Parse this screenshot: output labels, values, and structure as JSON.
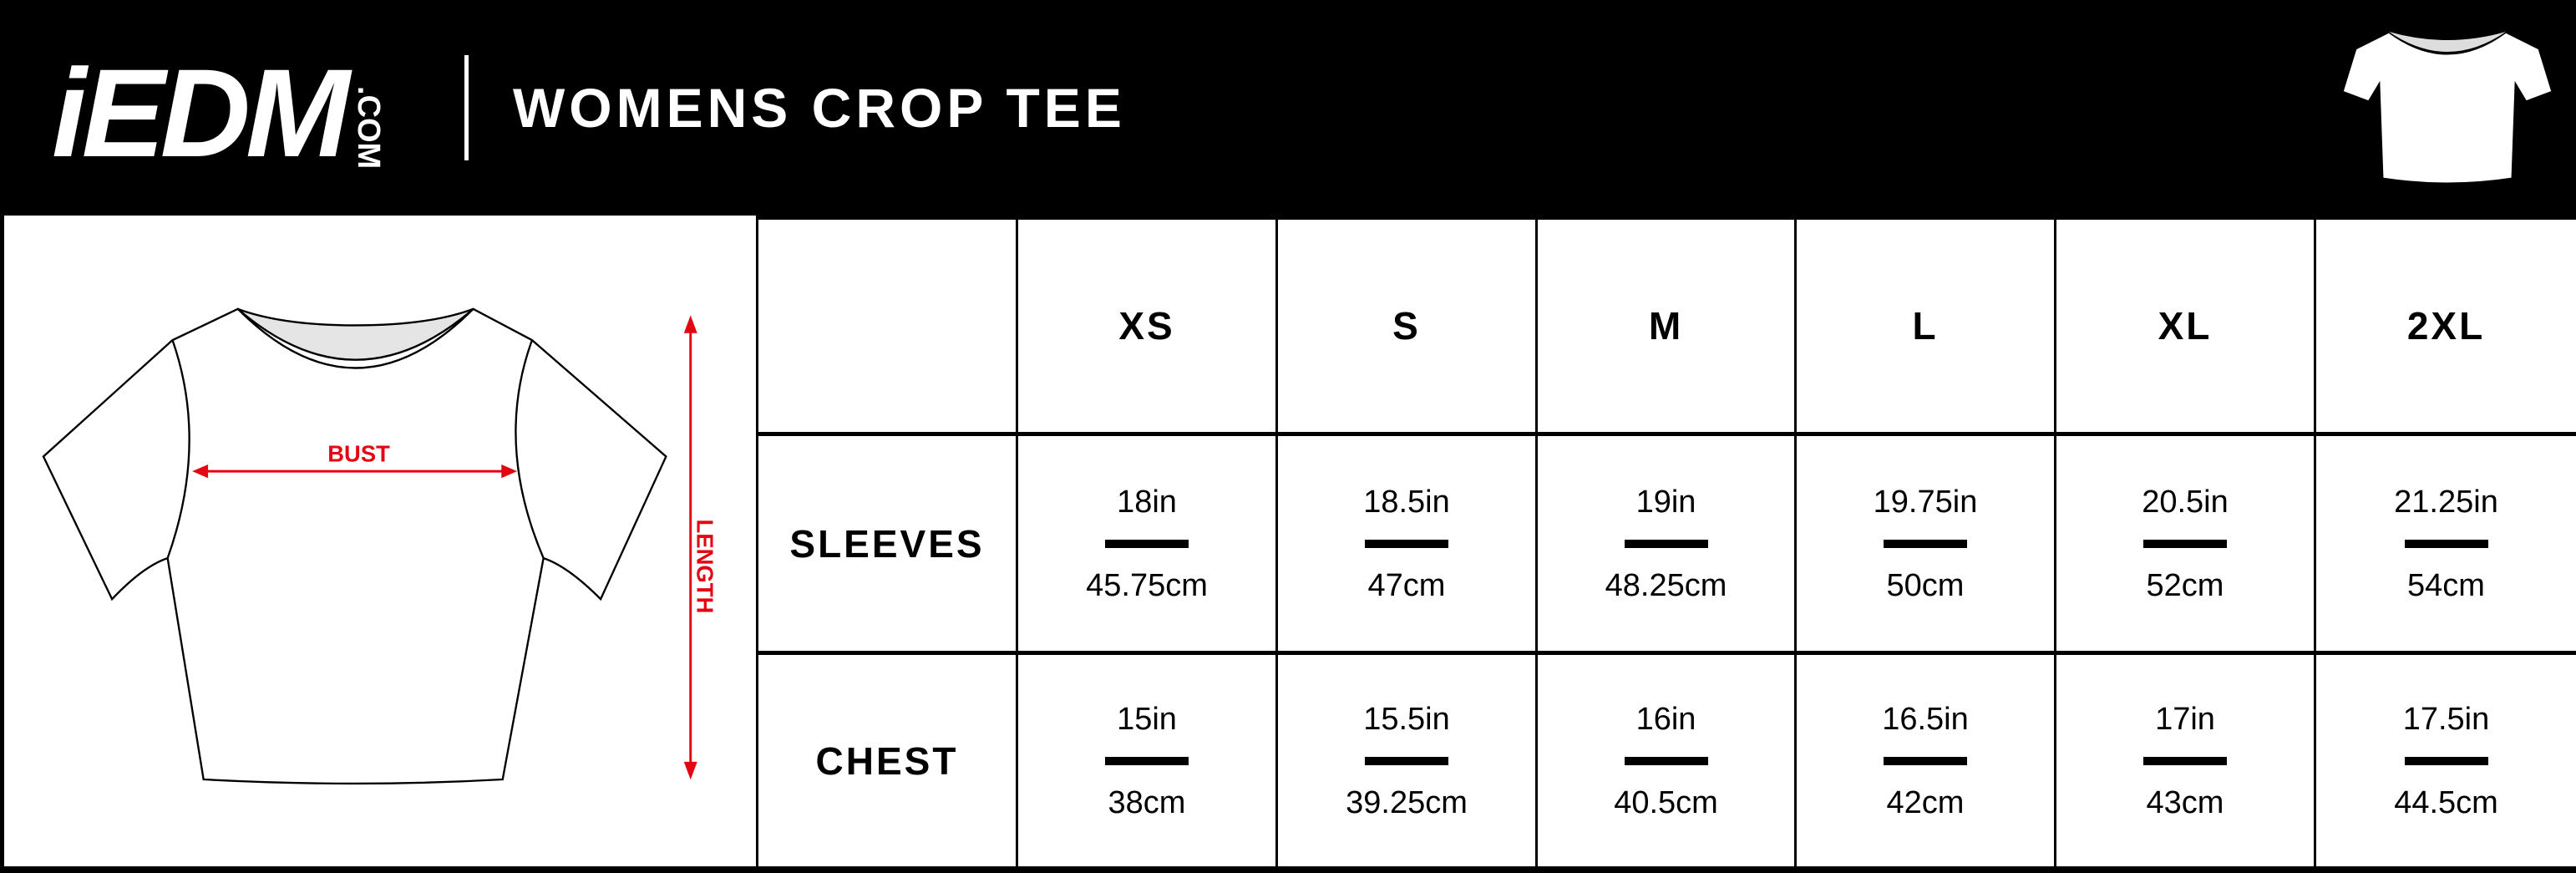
{
  "header": {
    "logo_main": "iEDM",
    "logo_suffix": ".COM",
    "title": "WOMENS CROP TEE"
  },
  "diagram": {
    "bust_label": "BUST",
    "length_label": "LENGTH",
    "arrow_color": "#e30613"
  },
  "table": {
    "sizes": [
      "XS",
      "S",
      "M",
      "L",
      "XL",
      "2XL"
    ],
    "rows": [
      {
        "label": "SLEEVES",
        "inches": [
          "18in",
          "18.5in",
          "19in",
          "19.75in",
          "20.5in",
          "21.25in"
        ],
        "cm": [
          "45.75cm",
          "47cm",
          "48.25cm",
          "50cm",
          "52cm",
          "54cm"
        ]
      },
      {
        "label": "CHEST",
        "inches": [
          "15in",
          "15.5in",
          "16in",
          "16.5in",
          "17in",
          "17.5in"
        ],
        "cm": [
          "38cm",
          "39.25cm",
          "40.5cm",
          "42cm",
          "43cm",
          "44.5cm"
        ]
      }
    ]
  }
}
